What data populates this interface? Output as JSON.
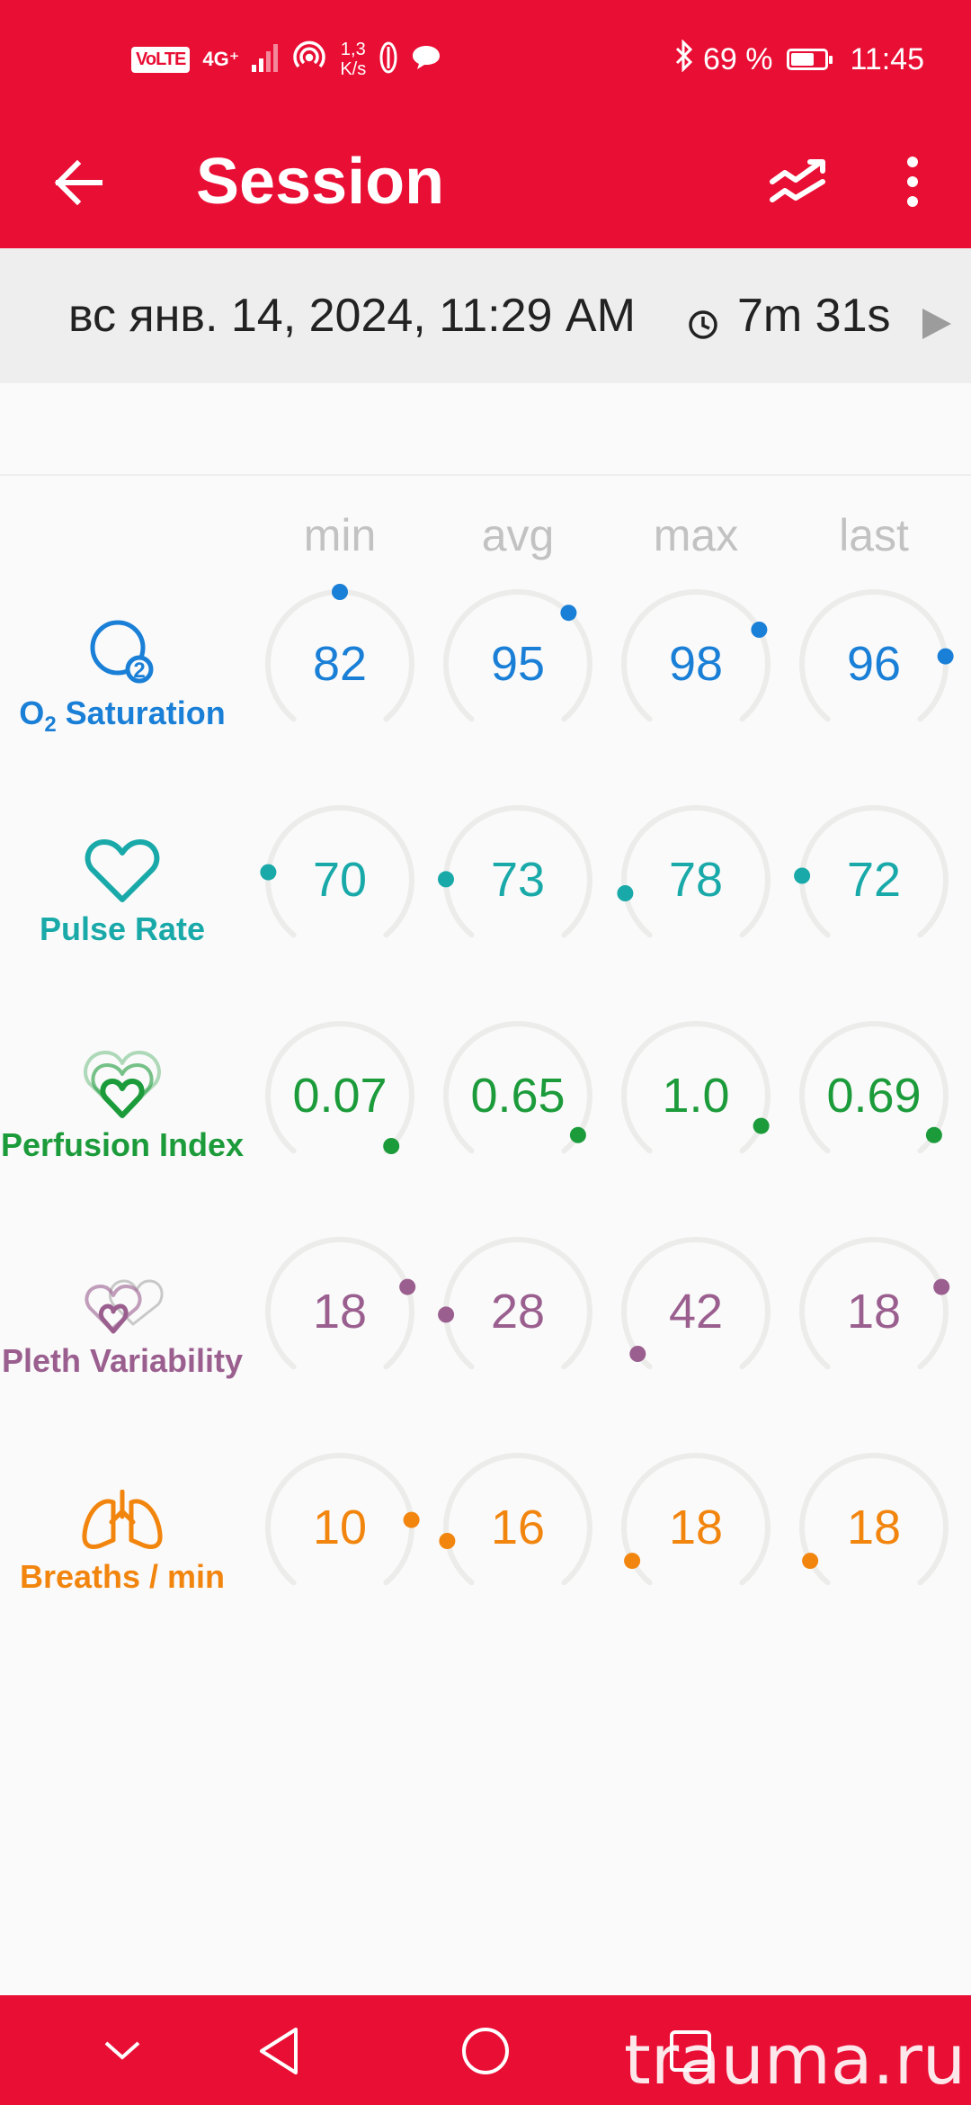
{
  "status_bar": {
    "volte": "VoLTE",
    "network": "4G⁺",
    "speed_value": "1,3",
    "speed_unit": "K/s",
    "battery_percent": "69 %",
    "battery_level": 0.69,
    "time": "11:45"
  },
  "app_bar": {
    "title": "Session"
  },
  "session": {
    "date": "вс янв. 14, 2024, 11:29 AM",
    "duration": "7m 31s"
  },
  "columns": [
    "min",
    "avg",
    "max",
    "last"
  ],
  "metrics": [
    {
      "label": "Saturation",
      "subscript_prefix": "O",
      "subscript": "2",
      "color": "#1a7fd6",
      "icon": "o2-bubble-icon",
      "values": [
        "82",
        "95",
        "98",
        "96"
      ],
      "levels": [
        0.5,
        0.66,
        0.72,
        0.8
      ]
    },
    {
      "label": "Pulse Rate",
      "color": "#1aa9a9",
      "icon": "heart-icon",
      "values": [
        "70",
        "73",
        "78",
        "72"
      ],
      "levels": [
        0.2,
        0.18,
        0.14,
        0.19
      ]
    },
    {
      "label": "Perfusion Index",
      "color": "#1c9b3b",
      "icon": "perfusion-hearts-icon",
      "values": [
        "0.07",
        "0.65",
        "1.0",
        "0.69"
      ],
      "levels": [
        0.98,
        0.94,
        0.91,
        0.94
      ]
    },
    {
      "label": "Pleth Variability",
      "color": "#9a5f8f",
      "icon": "pleth-hearts-icon",
      "values": [
        "18",
        "28",
        "42",
        "18"
      ],
      "levels": [
        0.75,
        0.17,
        0.05,
        0.75
      ]
    },
    {
      "label": "Breaths / min",
      "color": "#f2850e",
      "icon": "lungs-icon",
      "values": [
        "10",
        "16",
        "18",
        "18"
      ],
      "levels": [
        0.8,
        0.14,
        0.08,
        0.08
      ]
    }
  ],
  "colors": {
    "accent": "#e90e34",
    "gauge_track": "#ececea"
  },
  "watermark": "trauma.ru"
}
